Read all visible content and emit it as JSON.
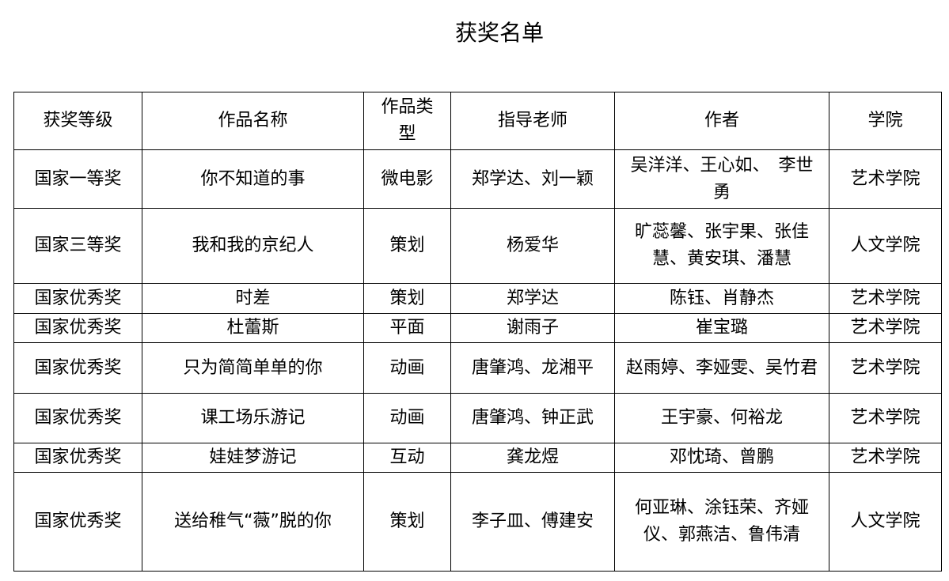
{
  "title": "获奖名单",
  "headers": [
    "获奖等级",
    "作品名称",
    "作品类型",
    "指导老师",
    "作者",
    "学院"
  ],
  "rows": [
    [
      "国家一等奖",
      "你不知道的事",
      "微电影",
      "郑学达、刘一颖",
      "吴洋洋、王心如、　李世勇",
      "艺术学院"
    ],
    [
      "国家三等奖",
      "我和我的京纪人",
      "策划",
      "杨爱华",
      "旷蕊馨、张宇果、张佳慧、黄安琪、潘慧",
      "人文学院"
    ],
    [
      "国家优秀奖",
      "时差",
      "策划",
      "郑学达",
      "陈钰、肖静杰",
      "艺术学院"
    ],
    [
      "国家优秀奖",
      "杜蕾斯",
      "平面",
      "谢雨子",
      "崔宝璐",
      "艺术学院"
    ],
    [
      "国家优秀奖",
      "只为简简单单的你",
      "动画",
      "唐肇鸿、龙湘平",
      "赵雨婷、李娅雯、吴竹君",
      "艺术学院"
    ],
    [
      "国家优秀奖",
      "课工场乐游记",
      "动画",
      "唐肇鸿、钟正武",
      "王宇豪、何裕龙",
      "艺术学院"
    ],
    [
      "国家优秀奖",
      "娃娃梦游记",
      "互动",
      "龚龙煜",
      "邓忱琦、曾鹏",
      "艺术学院"
    ],
    [
      "国家优秀奖",
      "送给稚气“薇”脱的你",
      "策划",
      "李子皿、傅建安",
      "何亚琳、涂钰荣、齐娅仪、郭燕洁、鲁伟清",
      "人文学院"
    ]
  ]
}
